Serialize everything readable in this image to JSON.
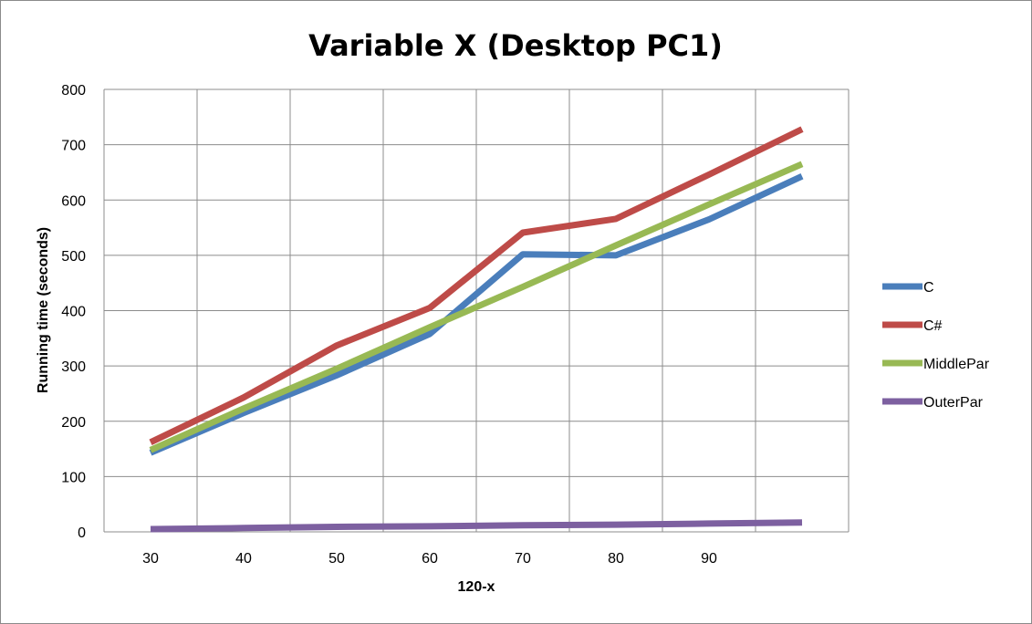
{
  "chart_data": {
    "type": "line",
    "title": "Variable X (Desktop PC1)",
    "xlabel": "120-x",
    "ylabel": "Running time (seconds)",
    "x": [
      30,
      40,
      50,
      60,
      70,
      80,
      90,
      100
    ],
    "x_tick_labels": [
      "30",
      "40",
      "50",
      "60",
      "70",
      "80",
      "90"
    ],
    "ylim": [
      0,
      800
    ],
    "y_ticks": [
      0,
      100,
      200,
      300,
      400,
      500,
      600,
      700,
      800
    ],
    "grid": true,
    "legend_position": "right",
    "series": [
      {
        "name": "C",
        "color": "#4a7ebb",
        "values": [
          143,
          215,
          283,
          358,
          502,
          500,
          565,
          643
        ]
      },
      {
        "name": "C#",
        "color": "#be4b48",
        "values": [
          162,
          243,
          337,
          405,
          541,
          566,
          646,
          728
        ]
      },
      {
        "name": "MiddlePar",
        "color": "#98b954",
        "values": [
          148,
          223,
          295,
          370,
          443,
          518,
          592,
          665
        ]
      },
      {
        "name": "OuterPar",
        "color": "#7d60a0",
        "values": [
          5,
          7,
          9,
          10,
          12,
          13,
          15,
          17
        ]
      }
    ]
  }
}
